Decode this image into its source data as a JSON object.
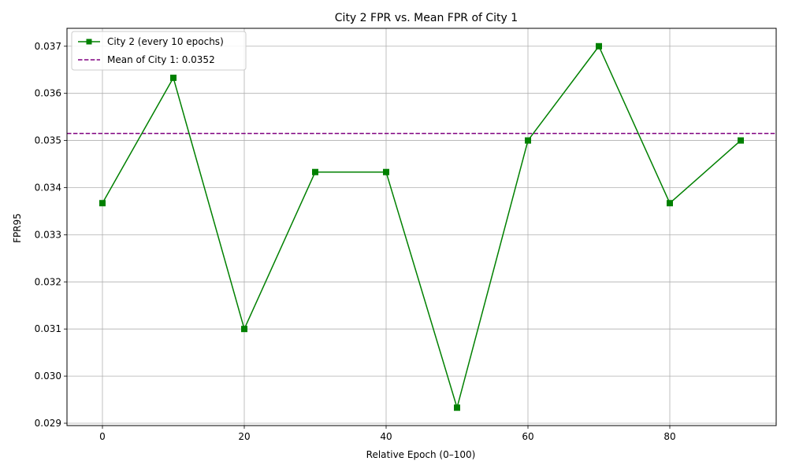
{
  "chart_data": {
    "type": "line",
    "title": "City 2 FPR vs. Mean FPR of City 1",
    "xlabel": "Relative Epoch (0–100)",
    "ylabel": "FPR95",
    "xlim": [
      -5,
      95
    ],
    "ylim": [
      0.02895,
      0.03738
    ],
    "xticks": [
      0,
      20,
      40,
      60,
      80
    ],
    "xtick_labels": [
      "0",
      "20",
      "40",
      "60",
      "80"
    ],
    "yticks": [
      0.029,
      0.03,
      0.031,
      0.032,
      0.033,
      0.034,
      0.035,
      0.036,
      0.037
    ],
    "ytick_labels": [
      "0.029",
      "0.030",
      "0.031",
      "0.032",
      "0.033",
      "0.034",
      "0.035",
      "0.036",
      "0.037"
    ],
    "grid": true,
    "legend_position": "upper-left",
    "series": [
      {
        "name": "City 2 (every 10 epochs)",
        "color": "#008000",
        "marker": "square",
        "x": [
          0,
          10,
          20,
          30,
          40,
          50,
          60,
          70,
          80,
          90
        ],
        "y": [
          0.03367,
          0.03633,
          0.031,
          0.03433,
          0.03433,
          0.02933,
          0.035,
          0.037,
          0.03367,
          0.035
        ]
      }
    ],
    "reference_lines": [
      {
        "name": "Mean of City 1: 0.0352",
        "color": "#800080",
        "style": "dashed",
        "y": 0.03515
      }
    ]
  }
}
